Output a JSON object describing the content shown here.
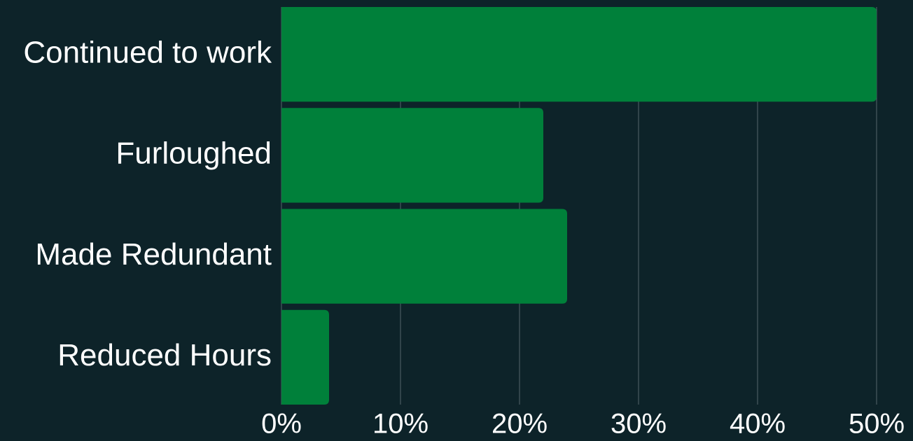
{
  "chart_data": {
    "type": "bar",
    "orientation": "horizontal",
    "categories": [
      "Continued to work",
      "Furloughed",
      "Made Redundant",
      "Reduced Hours"
    ],
    "values": [
      50,
      22,
      24,
      4
    ],
    "color": "#00803a",
    "xlim": [
      0,
      50
    ],
    "xticks": [
      {
        "value": 0,
        "label": "0%"
      },
      {
        "value": 10,
        "label": "10%"
      },
      {
        "value": 20,
        "label": "20%"
      },
      {
        "value": 30,
        "label": "30%"
      },
      {
        "value": 40,
        "label": "40%"
      },
      {
        "value": 50,
        "label": "50%"
      }
    ],
    "grid": true
  }
}
